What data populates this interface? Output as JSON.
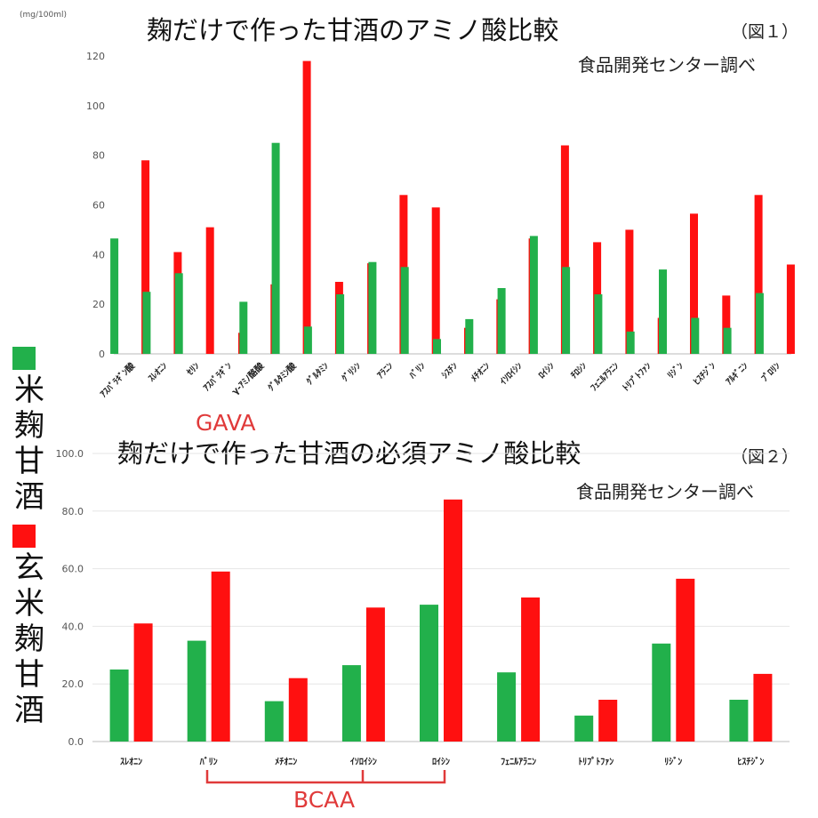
{
  "colors": {
    "green": "#22b04b",
    "red": "#ff1010",
    "accent_text": "#e03a3a"
  },
  "legend": [
    {
      "color": "#22b04b",
      "label": "米麹甘酒"
    },
    {
      "color": "#ff1010",
      "label": "玄米麹甘酒"
    }
  ],
  "annotations": {
    "gaba": "GAVA",
    "bcaa": "BCAA"
  },
  "chart_data": [
    {
      "type": "bar",
      "title": "麹だけで作った甘酒のアミノ酸比較",
      "figure_label": "（図１）",
      "source_note": "食品開発センター調べ",
      "unit": "(mg/100ml)",
      "ylim": [
        0,
        120
      ],
      "yticks": [
        "0",
        "20",
        "40",
        "60",
        "80",
        "100",
        "120"
      ],
      "grid": false,
      "categories": [
        "ｱｽﾊﾟﾗｷﾞﾝ酸",
        "ｽﾚｵﾆﾝ",
        "ｾﾘﾝ",
        "ｱｽﾊﾟﾗｷﾞﾝ",
        "γ-ｱﾐﾉ酪酸",
        "ｸﾞﾙﾀﾐﾝ酸",
        "ｸﾞﾙﾀﾐﾝ",
        "ｸﾞﾘｼﾝ",
        "ｱﾗﾆﾝ",
        "ﾊﾞﾘﾝ",
        "ｼｽﾁﾝ",
        "ﾒﾁｵﾆﾝ",
        "ｲｿﾛｲｼﾝ",
        "ﾛｲｼﾝ",
        "ﾁﾛｼﾝ",
        "ﾌｪﾆﾙｱﾗﾆﾝ",
        "ﾄﾘﾌﾟﾄﾌｧﾝ",
        "ﾘｼﾞﾝ",
        "ﾋｽﾁｼﾞﾝ",
        "ｱﾙｷﾞﾆﾝ",
        "ﾌﾟﾛﾘﾝ"
      ],
      "series": [
        {
          "values": [
            46.5,
            25,
            32.5,
            0,
            21,
            85,
            11,
            24,
            37,
            35,
            6,
            14,
            26.5,
            47.5,
            35,
            24,
            9,
            34,
            14.5,
            10.5,
            24.5
          ]
        },
        {
          "values": [
            78,
            41,
            51,
            8.5,
            28,
            118,
            29,
            36.5,
            64,
            59,
            10.5,
            22,
            46.5,
            84,
            45,
            50,
            14.5,
            56.5,
            23.5,
            64,
            36
          ]
        }
      ]
    },
    {
      "type": "bar",
      "title": "麹だけで作った甘酒の必須アミノ酸比較",
      "figure_label": "（図２）",
      "source_note": "食品開発センター調べ",
      "ylim": [
        0,
        100
      ],
      "yticks": [
        "0.0",
        "20.0",
        "40.0",
        "60.0",
        "80.0",
        "100.0"
      ],
      "grid": true,
      "categories": [
        "ｽﾚｵﾆﾝ",
        "ﾊﾞﾘﾝ",
        "ﾒﾁｵﾆﾝ",
        "ｲｿﾛｲｼﾝ",
        "ﾛｲｼﾝ",
        "ﾌｪﾆﾙｱﾗﾆﾝ",
        "ﾄﾘﾌﾟﾄﾌｧﾝ",
        "ﾘｼﾞﾝ",
        "ﾋｽﾁｼﾞﾝ"
      ],
      "series": [
        {
          "values": [
            25,
            35,
            14,
            26.5,
            47.5,
            24,
            9,
            34,
            14.5
          ]
        },
        {
          "values": [
            41,
            59,
            22,
            46.5,
            84,
            50,
            14.5,
            56.5,
            23.5
          ]
        }
      ]
    }
  ]
}
